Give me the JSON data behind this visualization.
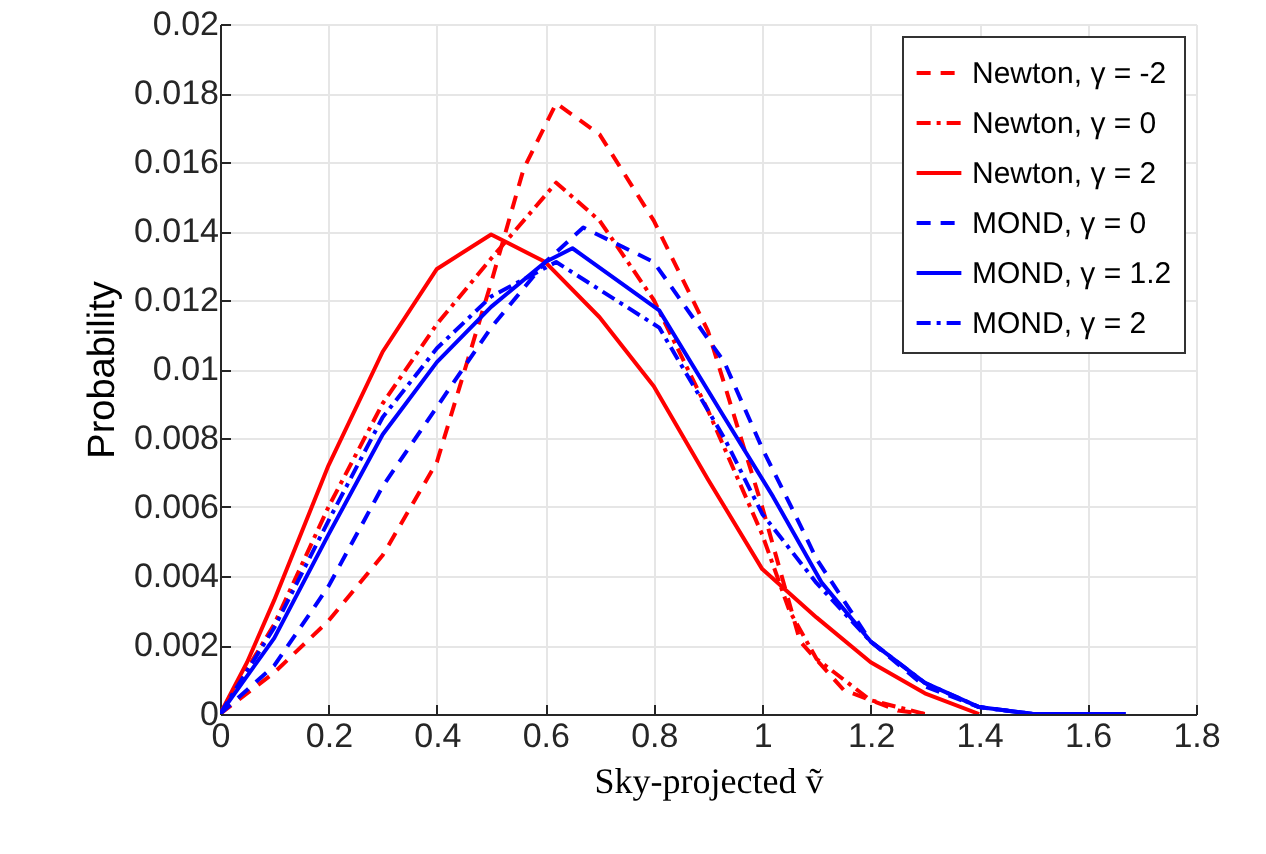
{
  "chart_data": {
    "type": "line",
    "xlabel": "Sky-projected ṽ",
    "ylabel": "Probability",
    "xlim": [
      0,
      1.8
    ],
    "xticks": [
      0,
      0.2,
      0.4,
      0.6,
      0.8,
      1,
      1.2,
      1.4,
      1.6,
      1.8
    ],
    "ylim": [
      0,
      0.02
    ],
    "yticks": [
      0,
      0.002,
      0.004,
      0.006,
      0.008,
      0.01,
      0.012,
      0.014,
      0.016,
      0.018,
      0.02
    ],
    "grid": true,
    "legend": "top right",
    "series": [
      {
        "name": "Newton, γ = -2",
        "color": "#ff0000",
        "line_style": "dashed",
        "x": [
          0,
          0.1,
          0.2,
          0.3,
          0.4,
          0.5,
          0.56,
          0.62,
          0.7,
          0.8,
          0.9,
          1.0,
          1.07,
          1.15,
          1.25,
          1.3
        ],
        "values": [
          0,
          0.0012,
          0.0027,
          0.0046,
          0.0073,
          0.0125,
          0.0158,
          0.0177,
          0.0168,
          0.0143,
          0.0111,
          0.006,
          0.0021,
          0.0007,
          0.0001,
          0
        ]
      },
      {
        "name": "Newton, γ = 0",
        "color": "#ff0000",
        "line_style": "dotted",
        "x": [
          0,
          0.1,
          0.2,
          0.3,
          0.4,
          0.5,
          0.62,
          0.7,
          0.8,
          0.9,
          1.0,
          1.05,
          1.1,
          1.2,
          1.3
        ],
        "values": [
          0,
          0.0026,
          0.006,
          0.009,
          0.0113,
          0.0132,
          0.0154,
          0.0143,
          0.012,
          0.0088,
          0.0052,
          0.003,
          0.0016,
          0.0004,
          0
        ]
      },
      {
        "name": "Newton, γ = 2",
        "color": "#ff0000",
        "line_style": "solid",
        "x": [
          0,
          0.05,
          0.1,
          0.2,
          0.3,
          0.4,
          0.5,
          0.6,
          0.7,
          0.8,
          0.9,
          1.0,
          1.1,
          1.2,
          1.3,
          1.4
        ],
        "values": [
          0,
          0.0015,
          0.0033,
          0.0072,
          0.0105,
          0.0129,
          0.0139,
          0.0131,
          0.0115,
          0.0095,
          0.0068,
          0.0042,
          0.0028,
          0.0015,
          0.0006,
          0
        ]
      },
      {
        "name": "MOND, γ = 0",
        "color": "#0000ff",
        "line_style": "dashed",
        "x": [
          0,
          0.1,
          0.2,
          0.3,
          0.4,
          0.5,
          0.6,
          0.67,
          0.8,
          0.93,
          1.0,
          1.06,
          1.1,
          1.2,
          1.3,
          1.4,
          1.5,
          1.67
        ],
        "values": [
          0,
          0.0014,
          0.0037,
          0.0066,
          0.0089,
          0.0112,
          0.0131,
          0.0141,
          0.0131,
          0.0102,
          0.0077,
          0.0058,
          0.0045,
          0.0021,
          0.0008,
          0.0002,
          0,
          0
        ]
      },
      {
        "name": "MOND, γ = 1.2",
        "color": "#0000ff",
        "line_style": "solid",
        "x": [
          0,
          0.1,
          0.2,
          0.3,
          0.4,
          0.5,
          0.6,
          0.65,
          0.81,
          0.93,
          1.02,
          1.11,
          1.2,
          1.3,
          1.4,
          1.5,
          1.67
        ],
        "values": [
          0,
          0.0022,
          0.0052,
          0.0081,
          0.0102,
          0.0118,
          0.0131,
          0.0135,
          0.0117,
          0.0086,
          0.0063,
          0.0038,
          0.0021,
          0.0009,
          0.0002,
          0,
          0
        ]
      },
      {
        "name": "MOND, γ = 2",
        "color": "#0000ff",
        "line_style": "dotted",
        "x": [
          0,
          0.1,
          0.2,
          0.3,
          0.4,
          0.5,
          0.62,
          0.81,
          0.93,
          1.0,
          1.1,
          1.2,
          1.3,
          1.4,
          1.5,
          1.67
        ],
        "values": [
          0,
          0.0025,
          0.0056,
          0.0086,
          0.0106,
          0.0121,
          0.0131,
          0.0112,
          0.008,
          0.0058,
          0.0038,
          0.0021,
          0.0009,
          0.0002,
          0,
          0
        ]
      }
    ]
  }
}
